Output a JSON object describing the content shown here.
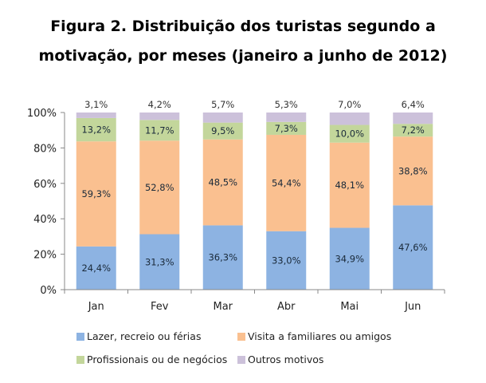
{
  "chart_data": {
    "type": "bar",
    "stacked": true,
    "title_lines": [
      "Figura 2. Distribuição dos turistas segundo a",
      "motivação, por meses (janeiro a junho de 2012)"
    ],
    "categories": [
      "Jan",
      "Fev",
      "Mar",
      "Abr",
      "Mai",
      "Jun"
    ],
    "series": [
      {
        "name": "Lazer, recreio ou férias",
        "color": "#8DB3E2",
        "values": [
          24.4,
          31.3,
          36.3,
          33.0,
          34.9,
          47.6
        ]
      },
      {
        "name": "Visita a familiares ou amigos",
        "color": "#FAC090",
        "values": [
          59.3,
          52.8,
          48.5,
          54.4,
          48.1,
          38.8
        ]
      },
      {
        "name": "Profissionais ou de negócios",
        "color": "#C3D69B",
        "values": [
          13.2,
          11.7,
          9.5,
          7.3,
          10.0,
          7.2
        ]
      },
      {
        "name": "Outros motivos",
        "color": "#CCC1DA",
        "values": [
          3.1,
          4.2,
          5.7,
          5.3,
          7.0,
          6.4
        ]
      }
    ],
    "data_labels": [
      [
        "24,4%",
        "31,3%",
        "36,3%",
        "33,0%",
        "34,9%",
        "47,6%"
      ],
      [
        "59,3%",
        "52,8%",
        "48,5%",
        "54,4%",
        "48,1%",
        "38,8%"
      ],
      [
        "13,2%",
        "11,7%",
        "9,5%",
        "7,3%",
        "10,0%",
        "7,2%"
      ],
      [
        "3,1%",
        "4,2%",
        "5,7%",
        "5,3%",
        "7,0%",
        "6,4%"
      ]
    ],
    "yticks": [
      "0%",
      "20%",
      "40%",
      "60%",
      "80%",
      "100%"
    ],
    "ylim": [
      0,
      100
    ],
    "grid": false,
    "legend_position": "bottom"
  }
}
